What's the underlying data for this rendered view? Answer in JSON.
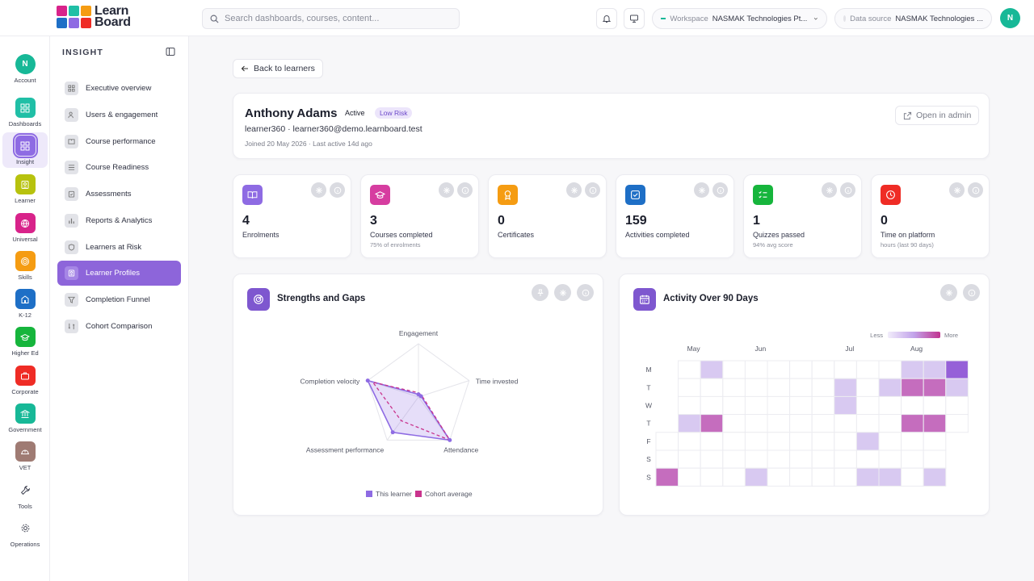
{
  "brand": {
    "line1": "Learn",
    "line2": "Board"
  },
  "search": {
    "placeholder": "Search dashboards, courses, content..."
  },
  "topbar": {
    "workspace_label": "Workspace",
    "workspace_value": "NASMAK Technologies Pt...",
    "datasource_label": "Data source",
    "datasource_value": "NASMAK Technologies ...",
    "avatar_initial": "N"
  },
  "rail": {
    "account_initial": "N",
    "items": [
      {
        "label": "Account",
        "color": "#17b897"
      },
      {
        "label": "Dashboards",
        "color": "#20bfa6"
      },
      {
        "label": "Insight",
        "color": "#8e6be3"
      },
      {
        "label": "Learner",
        "color": "#b7c20e"
      },
      {
        "label": "Universal",
        "color": "#d8238a"
      },
      {
        "label": "Skills",
        "color": "#f59c12"
      },
      {
        "label": "K-12",
        "color": "#1e6fc6"
      },
      {
        "label": "Higher Ed",
        "color": "#16b53c"
      },
      {
        "label": "Corporate",
        "color": "#ef2c25"
      },
      {
        "label": "Government",
        "color": "#17b897"
      },
      {
        "label": "VET",
        "color": "#9f7b73"
      },
      {
        "label": "Tools",
        "color": "none"
      },
      {
        "label": "Operations",
        "color": "none"
      }
    ]
  },
  "sidebar": {
    "title": "INSIGHT",
    "items": [
      {
        "label": "Executive overview"
      },
      {
        "label": "Users & engagement"
      },
      {
        "label": "Course performance"
      },
      {
        "label": "Course Readiness"
      },
      {
        "label": "Assessments"
      },
      {
        "label": "Reports & Analytics"
      },
      {
        "label": "Learners at Risk"
      },
      {
        "label": "Learner Profiles"
      },
      {
        "label": "Completion Funnel"
      },
      {
        "label": "Cohort Comparison"
      }
    ]
  },
  "back_label": "Back to learners",
  "profile": {
    "name": "Anthony Adams",
    "status": "Active",
    "risk": "Low Risk",
    "email_line": "learner360 · learner360@demo.learnboard.test",
    "joined_line": "Joined 20 May 2026 · Last active 14d ago",
    "open_admin": "Open in admin"
  },
  "stats": [
    {
      "value": "4",
      "label": "Enrolments",
      "sub": "",
      "color": "#8e6be3",
      "icon": "book-icon"
    },
    {
      "value": "3",
      "label": "Courses completed",
      "sub": "75% of enrolments",
      "color": "#d63da0",
      "icon": "graduation-cap-icon"
    },
    {
      "value": "0",
      "label": "Certificates",
      "sub": "",
      "color": "#f59c12",
      "icon": "award-icon"
    },
    {
      "value": "159",
      "label": "Activities completed",
      "sub": "",
      "color": "#1e6fc6",
      "icon": "checkbox-icon"
    },
    {
      "value": "1",
      "label": "Quizzes passed",
      "sub": "94% avg score",
      "color": "#16b53c",
      "icon": "list-check-icon"
    },
    {
      "value": "0",
      "label": "Time on platform",
      "sub": "hours (last 90 days)",
      "color": "#ef2c25",
      "icon": "clock-icon"
    }
  ],
  "radar": {
    "title": "Strengths and Gaps",
    "axes": [
      "Engagement",
      "Time invested",
      "Attendance",
      "Assessment performance",
      "Completion velocity"
    ],
    "learner": [
      0.05,
      0.05,
      1.0,
      0.82,
      1.0
    ],
    "cohort": [
      0.08,
      0.07,
      1.0,
      0.55,
      0.9
    ],
    "legend_learner": "This learner",
    "legend_cohort": "Cohort average",
    "learner_color": "#8e6be3",
    "cohort_color": "#c9338d"
  },
  "heatmap": {
    "title": "Activity Over 90 Days",
    "legend_less": "Less",
    "legend_more": "More",
    "months": [
      {
        "label": "May",
        "col": 1
      },
      {
        "label": "Jun",
        "col": 4
      },
      {
        "label": "Jul",
        "col": 8
      },
      {
        "label": "Aug",
        "col": 11
      }
    ],
    "days": [
      "M",
      "T",
      "W",
      "T",
      "F",
      "S",
      "S"
    ],
    "levels": [
      [
        null,
        0,
        1,
        0,
        0,
        0,
        0,
        0,
        0,
        0,
        0,
        1,
        1,
        3
      ],
      [
        null,
        0,
        0,
        0,
        0,
        0,
        0,
        0,
        1,
        0,
        1,
        2,
        2,
        1
      ],
      [
        null,
        0,
        0,
        0,
        0,
        0,
        0,
        0,
        1,
        0,
        0,
        0,
        0,
        0
      ],
      [
        null,
        1,
        2,
        0,
        0,
        0,
        0,
        0,
        0,
        0,
        0,
        2,
        2,
        0
      ],
      [
        0,
        0,
        0,
        0,
        0,
        0,
        0,
        0,
        0,
        1,
        0,
        0,
        0,
        null
      ],
      [
        0,
        0,
        0,
        0,
        0,
        0,
        0,
        0,
        0,
        0,
        0,
        0,
        0,
        null
      ],
      [
        2,
        0,
        0,
        0,
        1,
        0,
        0,
        0,
        0,
        1,
        1,
        0,
        1,
        null
      ]
    ]
  }
}
